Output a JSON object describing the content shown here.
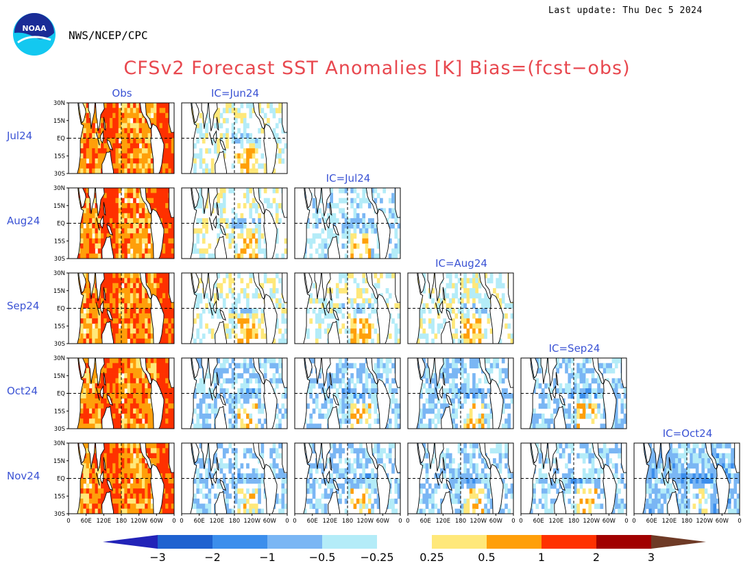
{
  "header": {
    "last_update": "Last update: Thu Dec 5 2024",
    "agency": "NWS/NCEP/CPC",
    "logo_text": "NOAA",
    "title": "CFSv2 Forecast SST Anomalies [K] Bias=(fcst−obs)"
  },
  "chart_data": {
    "type": "heatmap",
    "title": "CFSv2 Forecast SST Anomalies [K] Bias=(fcst−obs)",
    "columns": [
      "Obs",
      "IC=Jun24",
      "IC=Jul24",
      "IC=Aug24",
      "IC=Sep24",
      "IC=Oct24"
    ],
    "rows": [
      "Jul24",
      "Aug24",
      "Sep24",
      "Oct24",
      "Nov24"
    ],
    "panels_per_row": [
      2,
      3,
      4,
      5,
      6
    ],
    "lat_ticks": [
      "30N",
      "15N",
      "EQ",
      "15S",
      "30S"
    ],
    "lon_ticks": [
      "0",
      "60E",
      "120E",
      "180",
      "120W",
      "60W",
      "0"
    ],
    "lat_range": [
      -30,
      30
    ],
    "lon_range": [
      0,
      360
    ],
    "panel_character": [
      [
        "warm",
        "mixed"
      ],
      [
        "warm",
        "mixed",
        "mixed-cool"
      ],
      [
        "warm",
        "mixed",
        "mixed",
        "mixed"
      ],
      [
        "warm",
        "cool",
        "cool",
        "cool",
        "cool"
      ],
      [
        "warm",
        "cool",
        "cool",
        "cool",
        "cool",
        "strong-cool"
      ]
    ],
    "colorbar": {
      "levels": [
        "−3",
        "−2",
        "−1",
        "−0.5",
        "−0.25",
        "0.25",
        "0.5",
        "1",
        "2",
        "3"
      ],
      "colors": [
        "#2223b8",
        "#1f62d0",
        "#3c8eec",
        "#7ab6f4",
        "#b4ecf8",
        "#ffffff",
        "#ffe87a",
        "#ff9f0a",
        "#ff3100",
        "#a10000",
        "#6e3a26"
      ]
    }
  }
}
